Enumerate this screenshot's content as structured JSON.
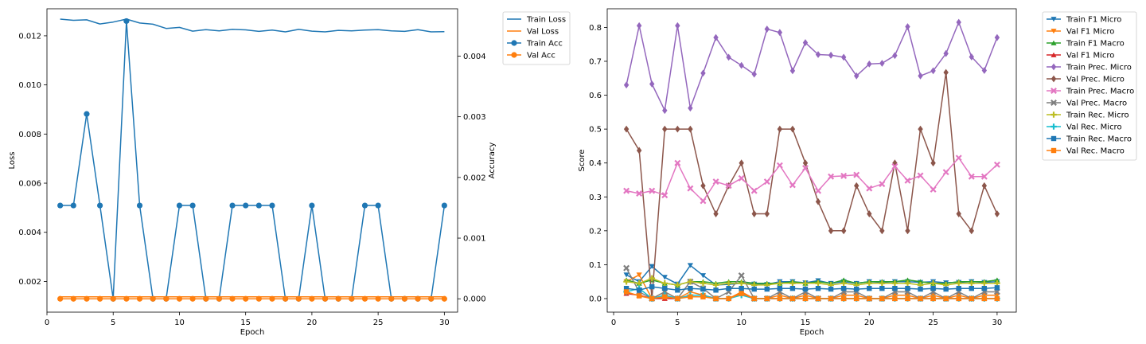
{
  "chart_data": [
    {
      "type": "line",
      "xlabel": "Epoch",
      "ylabel": "Loss",
      "y2label": "Accuracy",
      "grid": false,
      "legend_position": "outside top-right",
      "x": [
        1,
        2,
        3,
        4,
        5,
        6,
        7,
        8,
        9,
        10,
        11,
        12,
        13,
        14,
        15,
        16,
        17,
        18,
        19,
        20,
        21,
        22,
        23,
        24,
        25,
        26,
        27,
        28,
        29,
        30
      ],
      "xlim": [
        0.0,
        31.0
      ],
      "ylim": [
        0.00075,
        0.0131
      ],
      "y2lim": [
        -0.00022,
        0.00478
      ],
      "xticks": [
        0,
        5,
        10,
        15,
        20,
        25,
        30
      ],
      "yticks": [
        0.002,
        0.004,
        0.006,
        0.008,
        0.01,
        0.012
      ],
      "ytick_labels": [
        "0.002",
        "0.004",
        "0.006",
        "0.008",
        "0.010",
        "0.012"
      ],
      "y2ticks": [
        0,
        0.001,
        0.002,
        0.003,
        0.004
      ],
      "y2tick_labels": [
        "0.000",
        "0.001",
        "0.002",
        "0.003",
        "0.004"
      ],
      "series": [
        {
          "name": "Train Loss",
          "axis": "left",
          "color": "#1f77b4",
          "marker": "none",
          "values": [
            0.01268,
            0.01263,
            0.01265,
            0.01248,
            0.01256,
            0.01268,
            0.01252,
            0.01247,
            0.0123,
            0.01234,
            0.01219,
            0.01225,
            0.0122,
            0.01226,
            0.01224,
            0.01218,
            0.01223,
            0.01216,
            0.01226,
            0.01219,
            0.01216,
            0.01222,
            0.0122,
            0.01223,
            0.01225,
            0.0122,
            0.01218,
            0.01225,
            0.01216,
            0.01217
          ]
        },
        {
          "name": "Val Loss",
          "axis": "left",
          "color": "#ff7f0e",
          "marker": "none",
          "values": [
            0.001375,
            0.001375,
            0.001375,
            0.001375,
            0.001375,
            0.001375,
            0.001375,
            0.001375,
            0.001375,
            0.001375,
            0.001375,
            0.001375,
            0.001375,
            0.001375,
            0.001375,
            0.001375,
            0.001375,
            0.001375,
            0.001375,
            0.001375,
            0.001375,
            0.001375,
            0.001375,
            0.001375,
            0.001375,
            0.001375,
            0.001375,
            0.001375,
            0.001375,
            0.001375
          ]
        },
        {
          "name": "Train Acc",
          "axis": "right",
          "color": "#1f77b4",
          "marker": "circle",
          "values": [
            0.001538,
            0.001538,
            0.003046,
            0.001538,
            0,
            0.004577,
            0.001538,
            0,
            0,
            0.001538,
            0.001538,
            0,
            0,
            0.001538,
            0.001538,
            0.001538,
            0.001538,
            0,
            0,
            0.001538,
            0,
            0,
            0,
            0.001538,
            0.001538,
            0,
            0,
            0,
            0,
            0.001538
          ]
        },
        {
          "name": "Val Acc",
          "axis": "right",
          "color": "#ff7f0e",
          "marker": "circle",
          "values": [
            0,
            0,
            0,
            0,
            0,
            0,
            0,
            0,
            0,
            0,
            0,
            0,
            0,
            0,
            0,
            0,
            0,
            0,
            0,
            0,
            0,
            0,
            0,
            0,
            0,
            0,
            0,
            0,
            0,
            0
          ]
        }
      ]
    },
    {
      "type": "line",
      "xlabel": "Epoch",
      "ylabel": "Score",
      "grid": false,
      "legend_position": "outside top-right",
      "x": [
        1,
        2,
        3,
        4,
        5,
        6,
        7,
        8,
        9,
        10,
        11,
        12,
        13,
        14,
        15,
        16,
        17,
        18,
        19,
        20,
        21,
        22,
        23,
        24,
        25,
        26,
        27,
        28,
        29,
        30
      ],
      "xlim": [
        -0.5,
        31.5
      ],
      "ylim": [
        -0.04,
        0.855
      ],
      "xticks": [
        0,
        5,
        10,
        15,
        20,
        25,
        30
      ],
      "yticks": [
        0.0,
        0.1,
        0.2,
        0.3,
        0.4,
        0.5,
        0.6,
        0.7,
        0.8
      ],
      "ytick_labels": [
        "0.0",
        "0.1",
        "0.2",
        "0.3",
        "0.4",
        "0.5",
        "0.6",
        "0.7",
        "0.8"
      ],
      "series": [
        {
          "name": "Train F1 Micro",
          "color": "#1f77b4",
          "marker": "tri-down",
          "values": [
            0.07,
            0.05,
            0.095,
            0.063,
            0.043,
            0.098,
            0.068,
            0.04,
            0.042,
            0.045,
            0.043,
            0.042,
            0.05,
            0.05,
            0.047,
            0.053,
            0.045,
            0.05,
            0.045,
            0.05,
            0.048,
            0.05,
            0.05,
            0.048,
            0.05,
            0.047,
            0.048,
            0.05,
            0.048,
            0.05
          ]
        },
        {
          "name": "Val F1 Micro",
          "color": "#ff7f0e",
          "marker": "tri-down",
          "values": [
            0.05,
            0.07,
            0.0,
            0.02,
            0.0,
            0.02,
            0.01,
            0.0,
            0.0,
            0.02,
            0.0,
            0.0,
            0.01,
            0.0,
            0.01,
            0.0,
            0.0,
            0.01,
            0.01,
            0.0,
            0.0,
            0.01,
            0.01,
            0.0,
            0.01,
            0.0,
            0.01,
            0.0,
            0.01,
            0.01
          ]
        },
        {
          "name": "Train F1 Macro",
          "color": "#2ca02c",
          "marker": "tri-up",
          "values": [
            0.055,
            0.045,
            0.055,
            0.045,
            0.04,
            0.05,
            0.05,
            0.045,
            0.05,
            0.05,
            0.045,
            0.045,
            0.045,
            0.05,
            0.045,
            0.05,
            0.045,
            0.055,
            0.045,
            0.05,
            0.05,
            0.05,
            0.055,
            0.05,
            0.045,
            0.045,
            0.05,
            0.05,
            0.05,
            0.055
          ]
        },
        {
          "name": "Val F1 Micro",
          "color": "#d62728",
          "marker": "tri-up",
          "values": [
            0.015,
            0.01,
            0.0,
            0.0,
            0.0,
            0.01,
            0.01,
            0.0,
            0.0,
            0.015,
            0.0,
            0.0,
            0.0,
            0.0,
            0.0,
            0.0,
            0.0,
            0.0,
            0.0,
            0.0,
            0.0,
            0.0,
            0.0,
            0.0,
            0.0,
            0.0,
            0.0,
            0.0,
            0.0,
            0.0
          ]
        },
        {
          "name": "Train Prec. Micro",
          "color": "#9467bd",
          "marker": "diamond",
          "values": [
            0.63,
            0.805,
            0.633,
            0.555,
            0.805,
            0.562,
            0.665,
            0.77,
            0.712,
            0.688,
            0.662,
            0.795,
            0.785,
            0.672,
            0.755,
            0.72,
            0.718,
            0.712,
            0.657,
            0.692,
            0.694,
            0.717,
            0.802,
            0.657,
            0.672,
            0.723,
            0.815,
            0.713,
            0.673,
            0.77
          ]
        },
        {
          "name": "Val Prec. Micro",
          "color": "#8c564b",
          "marker": "diamond",
          "values": [
            0.5,
            0.437,
            0.0,
            0.5,
            0.5,
            0.5,
            0.333,
            0.25,
            0.333,
            0.4,
            0.25,
            0.25,
            0.5,
            0.5,
            0.4,
            0.286,
            0.2,
            0.2,
            0.333,
            0.25,
            0.2,
            0.4,
            0.2,
            0.5,
            0.4,
            0.667,
            0.25,
            0.2,
            0.333,
            0.25
          ]
        },
        {
          "name": "Train Prec. Macro",
          "color": "#e377c2",
          "marker": "x",
          "values": [
            0.318,
            0.31,
            0.318,
            0.305,
            0.4,
            0.325,
            0.288,
            0.345,
            0.333,
            0.355,
            0.318,
            0.345,
            0.393,
            0.335,
            0.385,
            0.318,
            0.36,
            0.362,
            0.365,
            0.325,
            0.338,
            0.39,
            0.348,
            0.363,
            0.322,
            0.373,
            0.415,
            0.36,
            0.36,
            0.395
          ]
        },
        {
          "name": "Val Prec. Macro",
          "color": "#7f7f7f",
          "marker": "x",
          "values": [
            0.09,
            0.02,
            0.0,
            0.02,
            0.0,
            0.05,
            0.03,
            0.0,
            0.02,
            0.068,
            0.0,
            0.0,
            0.02,
            0.0,
            0.02,
            0.0,
            0.0,
            0.02,
            0.02,
            0.0,
            0.0,
            0.02,
            0.02,
            0.0,
            0.02,
            0.0,
            0.02,
            0.0,
            0.02,
            0.02
          ]
        },
        {
          "name": "Train Rec. Micro",
          "color": "#bcbd22",
          "marker": "plus",
          "values": [
            0.05,
            0.045,
            0.06,
            0.045,
            0.04,
            0.05,
            0.045,
            0.04,
            0.045,
            0.045,
            0.04,
            0.04,
            0.045,
            0.045,
            0.045,
            0.045,
            0.04,
            0.045,
            0.04,
            0.045,
            0.045,
            0.045,
            0.045,
            0.04,
            0.045,
            0.04,
            0.045,
            0.045,
            0.045,
            0.045
          ]
        },
        {
          "name": "Val Rec. Micro",
          "color": "#17becf",
          "marker": "plus",
          "values": [
            0.02,
            0.03,
            0.0,
            0.01,
            0.0,
            0.01,
            0.01,
            0.0,
            0.0,
            0.01,
            0.0,
            0.0,
            0.0,
            0.0,
            0.0,
            0.0,
            0.0,
            0.0,
            0.0,
            0.0,
            0.0,
            0.0,
            0.0,
            0.0,
            0.0,
            0.0,
            0.0,
            0.0,
            0.0,
            0.0
          ]
        },
        {
          "name": "Train Rec. Macro",
          "color": "#1f77b4",
          "marker": "square",
          "values": [
            0.03,
            0.025,
            0.035,
            0.03,
            0.025,
            0.03,
            0.028,
            0.025,
            0.03,
            0.03,
            0.028,
            0.028,
            0.03,
            0.03,
            0.028,
            0.03,
            0.028,
            0.03,
            0.028,
            0.03,
            0.03,
            0.03,
            0.03,
            0.028,
            0.03,
            0.028,
            0.03,
            0.03,
            0.03,
            0.032
          ]
        },
        {
          "name": "Val Rec. Macro",
          "color": "#ff7f0e",
          "marker": "square",
          "values": [
            0.02,
            0.008,
            0.0,
            0.005,
            0.0,
            0.005,
            0.005,
            0.0,
            0.0,
            0.015,
            0.0,
            0.0,
            0.0,
            0.0,
            0.0,
            0.0,
            0.0,
            0.0,
            0.0,
            0.0,
            0.0,
            0.0,
            0.0,
            0.0,
            0.0,
            0.0,
            0.0,
            0.0,
            0.0,
            0.0
          ]
        }
      ]
    }
  ]
}
